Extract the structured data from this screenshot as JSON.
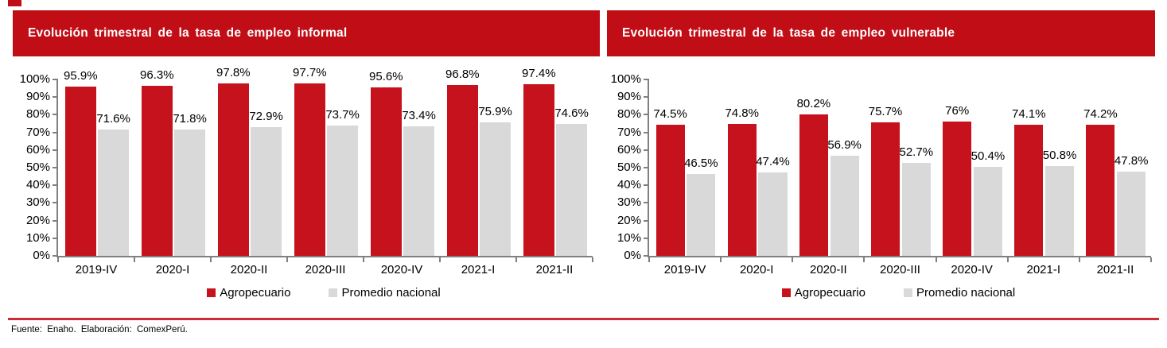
{
  "page": {
    "footer_source": "Fuente: Enaho. Elaboración: ComexPerú."
  },
  "colors": {
    "banner_red": "#C00D16",
    "bar_red": "#C6121C",
    "bar_gray": "#D9D9D9",
    "axis_gray": "#808080",
    "divider_red": "#CD2B35",
    "title_text": "#FFFFFF",
    "label_text": "#000000"
  },
  "chart_data": [
    {
      "type": "bar",
      "title": "Evolución trimestral de la tasa de empleo informal",
      "categories": [
        "2019-IV",
        "2020-I",
        "2020-II",
        "2020-III",
        "2020-IV",
        "2021-I",
        "2021-II"
      ],
      "series": [
        {
          "name": "Agropecuario",
          "color": "#C6121C",
          "values": [
            95.9,
            96.3,
            97.8,
            97.7,
            95.6,
            96.8,
            97.4
          ],
          "labels": [
            "95.9%",
            "96.3%",
            "97.8%",
            "97.7%",
            "95.6%",
            "96.8%",
            "97.4%"
          ]
        },
        {
          "name": "Promedio nacional",
          "color": "#D9D9D9",
          "values": [
            71.6,
            71.8,
            72.9,
            73.7,
            73.4,
            75.9,
            74.6
          ],
          "labels": [
            "71.6%",
            "71.8%",
            "72.9%",
            "73.7%",
            "73.4%",
            "75.9%",
            "74.6%"
          ]
        }
      ],
      "xlabel": "",
      "ylabel": "",
      "ylim": [
        0,
        100
      ],
      "ytick_step": 10,
      "ytick_labels": [
        "0%",
        "10%",
        "20%",
        "30%",
        "40%",
        "50%",
        "60%",
        "70%",
        "80%",
        "90%",
        "100%"
      ],
      "legend_position": "bottom",
      "grid": false
    },
    {
      "type": "bar",
      "title": "Evolución trimestral de la tasa de empleo vulnerable",
      "categories": [
        "2019-IV",
        "2020-I",
        "2020-II",
        "2020-III",
        "2020-IV",
        "2021-I",
        "2021-II"
      ],
      "series": [
        {
          "name": "Agropecuario",
          "color": "#C6121C",
          "values": [
            74.5,
            74.8,
            80.2,
            75.7,
            76,
            74.1,
            74.2
          ],
          "labels": [
            "74.5%",
            "74.8%",
            "80.2%",
            "75.7%",
            "76%",
            "74.1%",
            "74.2%"
          ]
        },
        {
          "name": "Promedio nacional",
          "color": "#D9D9D9",
          "values": [
            46.5,
            47.4,
            56.9,
            52.7,
            50.4,
            50.8,
            47.8
          ],
          "labels": [
            "46.5%",
            "47.4%",
            "56.9%",
            "52.7%",
            "50.4%",
            "50.8%",
            "47.8%"
          ]
        }
      ],
      "xlabel": "",
      "ylabel": "",
      "ylim": [
        0,
        100
      ],
      "ytick_step": 10,
      "ytick_labels": [
        "0%",
        "10%",
        "20%",
        "30%",
        "40%",
        "50%",
        "60%",
        "70%",
        "80%",
        "90%",
        "100%"
      ],
      "legend_position": "bottom",
      "grid": false
    }
  ]
}
